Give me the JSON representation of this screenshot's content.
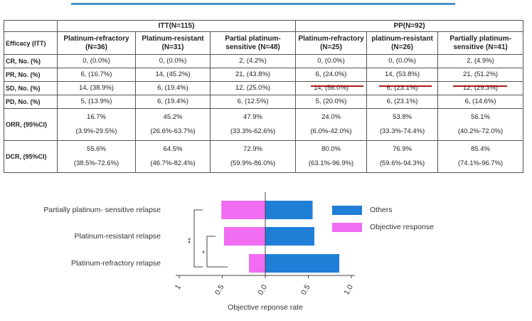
{
  "table": {
    "group_headers": [
      "ITT(N=115)",
      "PP(N=92)"
    ],
    "columns": [
      "Efficacy (ITT)",
      "Platinum-refractory (N=36)",
      "Platinum-resistant (N=31)",
      "Partial platinum-sensitive (N=48)",
      "Platinum-refractory (N=25)",
      "platinum-resistant (N=26)",
      "Partially platinum-sensitive (N=41)"
    ],
    "rows": [
      {
        "label": "CR, No. (%)",
        "cells": [
          "0, (0.0%)",
          "0, (0.0%)",
          "2, (4.2%)",
          "0, (0.0%)",
          "0, (0.0%)",
          "2, (4.9%)"
        ]
      },
      {
        "label": "PR, No. (%)",
        "cells": [
          "6, (16.7%)",
          "14, (45.2%)",
          "21, (43.8%)",
          "6, (24.0%)",
          "14, (53.8%)",
          "21, (51.2%)"
        ]
      },
      {
        "label": "SD, No. (%)",
        "cells": [
          "14, (38.9%)",
          "6, (19.4%)",
          "12, (25.0%)",
          "14, (56.0%)",
          "6, (23.1%)",
          "12, (29.3%)"
        ]
      },
      {
        "label": "PD, No. (%)",
        "cells": [
          "5, (13.9%)",
          "6, (19.4%)",
          "6, (12.5%)",
          "5, (20.0%)",
          "6, (23.1%)",
          "6, (14.6%)"
        ]
      },
      {
        "label": "ORR, (95%CI)",
        "cells": [
          [
            "16.7%",
            "(3.9%-29.5%)"
          ],
          [
            "45.2%",
            "(26.6%-63.7%)"
          ],
          [
            "47.9%",
            "(33.3%-62.6%)"
          ],
          [
            "24.0%",
            "(6.0%-42.0%)"
          ],
          [
            "53.8%",
            "(33.3%-74.4%)"
          ],
          [
            "56.1%",
            "(40.2%-72.0%)"
          ]
        ]
      },
      {
        "label": "DCR, (95%CI)",
        "cells": [
          [
            "55.6%",
            "(38.5%-72.6%)"
          ],
          [
            "64.5%",
            "(46.7%-82.4%)"
          ],
          [
            "72.9%",
            "(59.9%-86.0%)"
          ],
          [
            "80.0%",
            "(63.1%-96.9%)"
          ],
          [
            "76.9%",
            "(59.6%-94.3%)"
          ],
          [
            "85.4%",
            "(74.1%-96.7%)"
          ]
        ]
      }
    ]
  },
  "chart_data": {
    "type": "bar",
    "orientation": "horizontal",
    "stacked": true,
    "categories": [
      "Partially platinum- sensitive relapse",
      "Platinum-resistant relapse",
      "Platinum-refractory relapse"
    ],
    "series": [
      {
        "name": "Others",
        "color": "#1f7fd6",
        "values": [
          0.55,
          0.57,
          0.86
        ]
      },
      {
        "name": "Objective response",
        "color": "#f06cf0",
        "values": [
          -0.51,
          -0.48,
          -0.19
        ]
      }
    ],
    "xlabel": "Objective reponse rate",
    "xlim": [
      -1,
      1
    ],
    "xticks": [
      {
        "value": -1,
        "label": "1"
      },
      {
        "value": -0.5,
        "label": "0.5"
      },
      {
        "value": 0,
        "label": "0.0"
      },
      {
        "value": 0.5,
        "label": "0.5"
      },
      {
        "value": 1,
        "label": "1.0"
      }
    ],
    "annotations": [
      "**",
      "*"
    ],
    "legend": "right"
  }
}
